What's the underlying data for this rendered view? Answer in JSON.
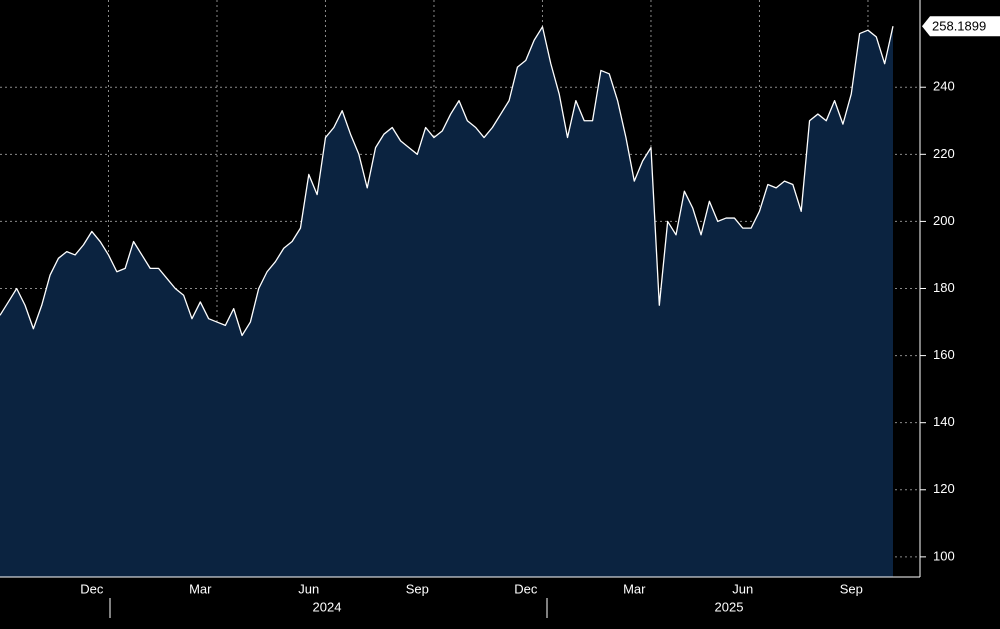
{
  "chart_data": {
    "type": "area",
    "categories": [
      null,
      null,
      null,
      null,
      null,
      null,
      null,
      null,
      null,
      null,
      null,
      "Dec",
      null,
      null,
      null,
      null,
      null,
      null,
      null,
      null,
      null,
      null,
      null,
      null,
      "Mar",
      null,
      null,
      null,
      null,
      null,
      null,
      null,
      null,
      null,
      null,
      null,
      null,
      "Jun",
      null,
      null,
      null,
      null,
      null,
      null,
      null,
      null,
      null,
      null,
      null,
      null,
      "Sep",
      null,
      null,
      null,
      null,
      null,
      null,
      null,
      null,
      null,
      null,
      null,
      null,
      "Dec",
      null,
      null,
      null,
      null,
      null,
      null,
      null,
      null,
      null,
      null,
      null,
      null,
      "Mar",
      null,
      null,
      null,
      null,
      null,
      null,
      null,
      null,
      null,
      null,
      null,
      null,
      "Jun",
      null,
      null,
      null,
      null,
      null,
      null,
      null,
      null,
      null,
      null,
      null,
      null,
      "Sep",
      null,
      null,
      null,
      null,
      null
    ],
    "year_labels": [
      "2024",
      "2025"
    ],
    "series": [
      {
        "color": "#ffffff",
        "fill": "#0b2340",
        "values": [
          172,
          176,
          180,
          175,
          168,
          175,
          184,
          189,
          191,
          190,
          193,
          197,
          194,
          190,
          185,
          186,
          194,
          190,
          186,
          186,
          183,
          180,
          178,
          171,
          176,
          171,
          170,
          169,
          174,
          166,
          170,
          180,
          185,
          188,
          192,
          194,
          198,
          214,
          208,
          225,
          228,
          233,
          226,
          220,
          210,
          222,
          226,
          228,
          224,
          222,
          220,
          228,
          225,
          227,
          232,
          236,
          230,
          228,
          225,
          228,
          232,
          236,
          246,
          248,
          254,
          258,
          247,
          238,
          225,
          236,
          230,
          230,
          245,
          244,
          236,
          225,
          212,
          218,
          222,
          175,
          200,
          196,
          209,
          204,
          196,
          206,
          200,
          201,
          201,
          198,
          198,
          203,
          211,
          210,
          212,
          211,
          203,
          230,
          232,
          230,
          236,
          229,
          238,
          256,
          257,
          255,
          247,
          258.1899
        ]
      }
    ],
    "ylim": [
      94,
      266
    ],
    "yticks": [
      100,
      120,
      140,
      160,
      180,
      200,
      220,
      240
    ],
    "grid": true
  }
}
